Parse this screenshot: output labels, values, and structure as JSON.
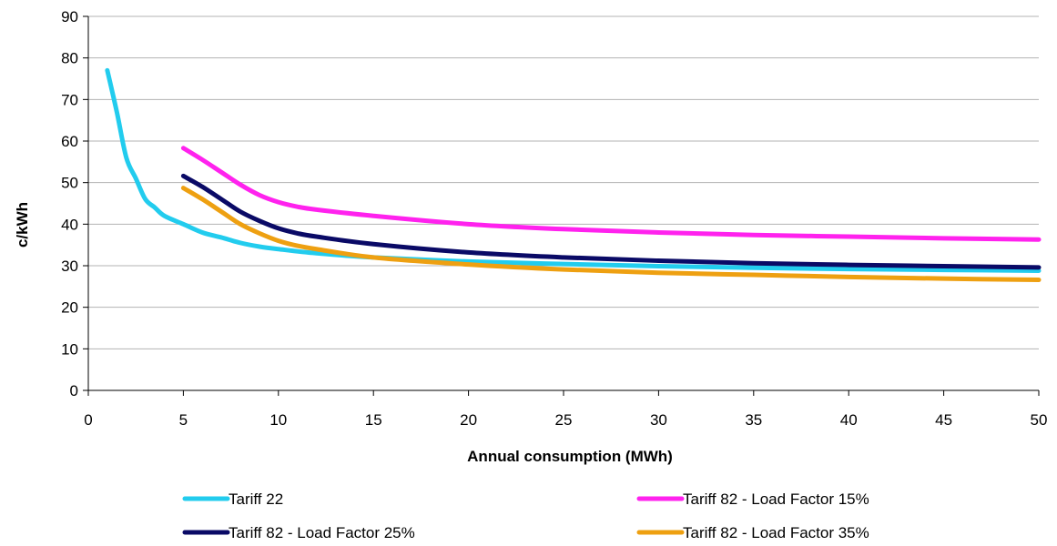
{
  "chart_data": {
    "type": "line",
    "xlabel": "Annual consumption (MWh)",
    "ylabel": "c/kWh",
    "xlim": [
      0,
      50
    ],
    "ylim": [
      0,
      90
    ],
    "x_ticks": [
      "0",
      "5",
      "10",
      "15",
      "20",
      "25",
      "30",
      "35",
      "40",
      "45",
      "50"
    ],
    "y_ticks": [
      "0",
      "10",
      "20",
      "30",
      "40",
      "50",
      "60",
      "70",
      "80",
      "90"
    ],
    "grid": "horizontal",
    "legend_position": "bottom",
    "series": [
      {
        "name": "Tariff 22",
        "color": "#22ccee",
        "x": [
          1,
          1.5,
          2,
          2.5,
          3,
          3.5,
          4,
          5,
          6,
          7,
          8,
          9,
          10,
          12,
          15,
          20,
          25,
          30,
          35,
          40,
          45,
          50
        ],
        "y": [
          77,
          67,
          56,
          51,
          46,
          44,
          42,
          40,
          38,
          36.8,
          35.5,
          34.6,
          34,
          33,
          32,
          31,
          30.4,
          29.9,
          29.5,
          29.2,
          29,
          28.8
        ]
      },
      {
        "name": "Tariff 82 - Load Factor 15%",
        "color": "#ff22ee",
        "x": [
          5,
          6,
          7,
          8,
          9,
          10,
          11,
          12,
          15,
          20,
          25,
          30,
          35,
          40,
          45,
          50
        ],
        "y": [
          58.3,
          55.5,
          52.5,
          49.5,
          47,
          45.3,
          44.2,
          43.5,
          42,
          40,
          38.8,
          38,
          37.4,
          37,
          36.6,
          36.3
        ]
      },
      {
        "name": "Tariff 82 - Load Factor 25%",
        "color": "#0a0a66",
        "x": [
          5,
          6,
          7,
          8,
          9,
          10,
          11,
          12,
          15,
          20,
          25,
          30,
          35,
          40,
          45,
          50
        ],
        "y": [
          51.6,
          49,
          46,
          43,
          40.8,
          39,
          37.8,
          37,
          35.2,
          33.2,
          32,
          31.2,
          30.6,
          30.2,
          29.9,
          29.6
        ]
      },
      {
        "name": "Tariff 82 - Load Factor 35%",
        "color": "#eea011",
        "x": [
          5,
          6,
          7,
          8,
          9,
          10,
          11,
          12,
          15,
          20,
          25,
          30,
          35,
          40,
          45,
          50
        ],
        "y": [
          48.7,
          46,
          43,
          40,
          37.8,
          36,
          34.8,
          34,
          32,
          30.3,
          29.1,
          28.3,
          27.8,
          27.3,
          26.9,
          26.6
        ]
      }
    ]
  }
}
